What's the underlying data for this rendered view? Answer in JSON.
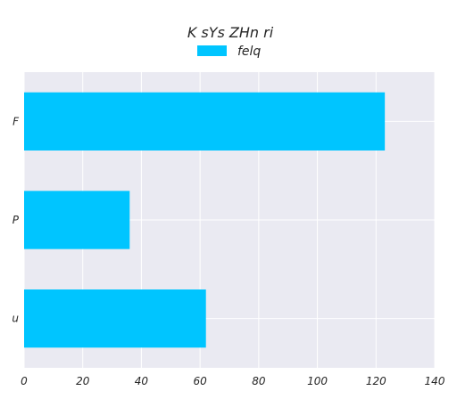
{
  "chart_data": {
    "type": "bar",
    "orientation": "horizontal",
    "title": "K sYs ZHn ri",
    "categories": [
      "F",
      "P",
      "u"
    ],
    "series": [
      {
        "name": "felq",
        "values": [
          123,
          36,
          62
        ],
        "color": "#00c5ff"
      }
    ],
    "xlim": [
      0,
      140
    ],
    "xticks": [
      0,
      20,
      40,
      60,
      80,
      100,
      120,
      140
    ],
    "grid": true,
    "legend_position": "top-center",
    "background_color": "#eaeaf2"
  }
}
